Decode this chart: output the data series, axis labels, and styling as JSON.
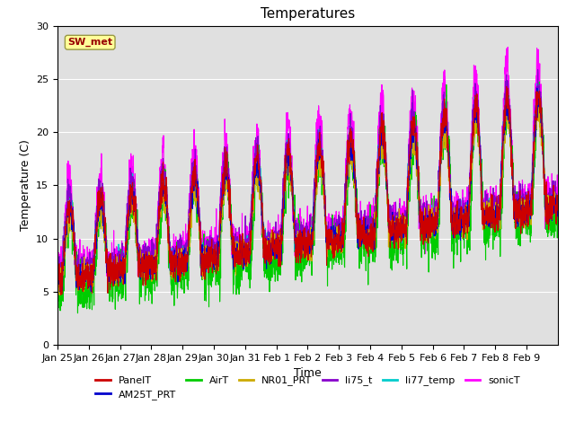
{
  "title": "Temperatures",
  "xlabel": "Time",
  "ylabel": "Temperature (C)",
  "ylim": [
    0,
    30
  ],
  "background_color": "#e0e0e0",
  "series": {
    "PanelT": {
      "color": "#cc0000",
      "lw": 0.8
    },
    "AM25T_PRT": {
      "color": "#0000cc",
      "lw": 0.8
    },
    "AirT": {
      "color": "#00cc00",
      "lw": 0.8
    },
    "NR01_PRT": {
      "color": "#ccaa00",
      "lw": 0.8
    },
    "li75_t": {
      "color": "#8800cc",
      "lw": 0.8
    },
    "li77_temp": {
      "color": "#00cccc",
      "lw": 0.8
    },
    "sonicT": {
      "color": "#ff00ff",
      "lw": 0.8
    }
  },
  "annotation": {
    "text": "SW_met",
    "facecolor": "#ffff99",
    "edgecolor": "#999944",
    "textcolor": "#990000",
    "fontsize": 8,
    "fontweight": "bold"
  },
  "xtick_labels": [
    "Jan 25",
    "Jan 26",
    "Jan 27",
    "Jan 28",
    "Jan 29",
    "Jan 30",
    "Jan 31",
    "Feb 1",
    "Feb 2",
    "Feb 3",
    "Feb 4",
    "Feb 5",
    "Feb 6",
    "Feb 7",
    "Feb 8",
    "Feb 9"
  ],
  "legend_order": [
    "PanelT",
    "AM25T_PRT",
    "AirT",
    "NR01_PRT",
    "li75_t",
    "li77_temp",
    "sonicT"
  ]
}
